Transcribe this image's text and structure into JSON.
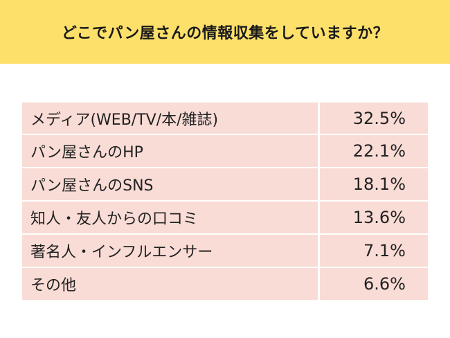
{
  "header": {
    "title": "どこでパン屋さんの情報収集をしていますか？"
  },
  "colors": {
    "header_bg": "#fde06a",
    "row_bg": "#f9dcd6"
  },
  "chart_data": {
    "type": "table",
    "title": "どこでパン屋さんの情報収集をしていますか？",
    "rows": [
      {
        "label": "メディア(WEB/TV/本/雑誌)",
        "value": "32.5%"
      },
      {
        "label": "パン屋さんのHP",
        "value": "22.1%"
      },
      {
        "label": "パン屋さんのSNS",
        "value": "18.1%"
      },
      {
        "label": "知人・友人からの口コミ",
        "value": "13.6%"
      },
      {
        "label": "著名人・インフルエンサー",
        "value": "7.1%"
      },
      {
        "label": "その他",
        "value": "6.6%"
      }
    ]
  }
}
